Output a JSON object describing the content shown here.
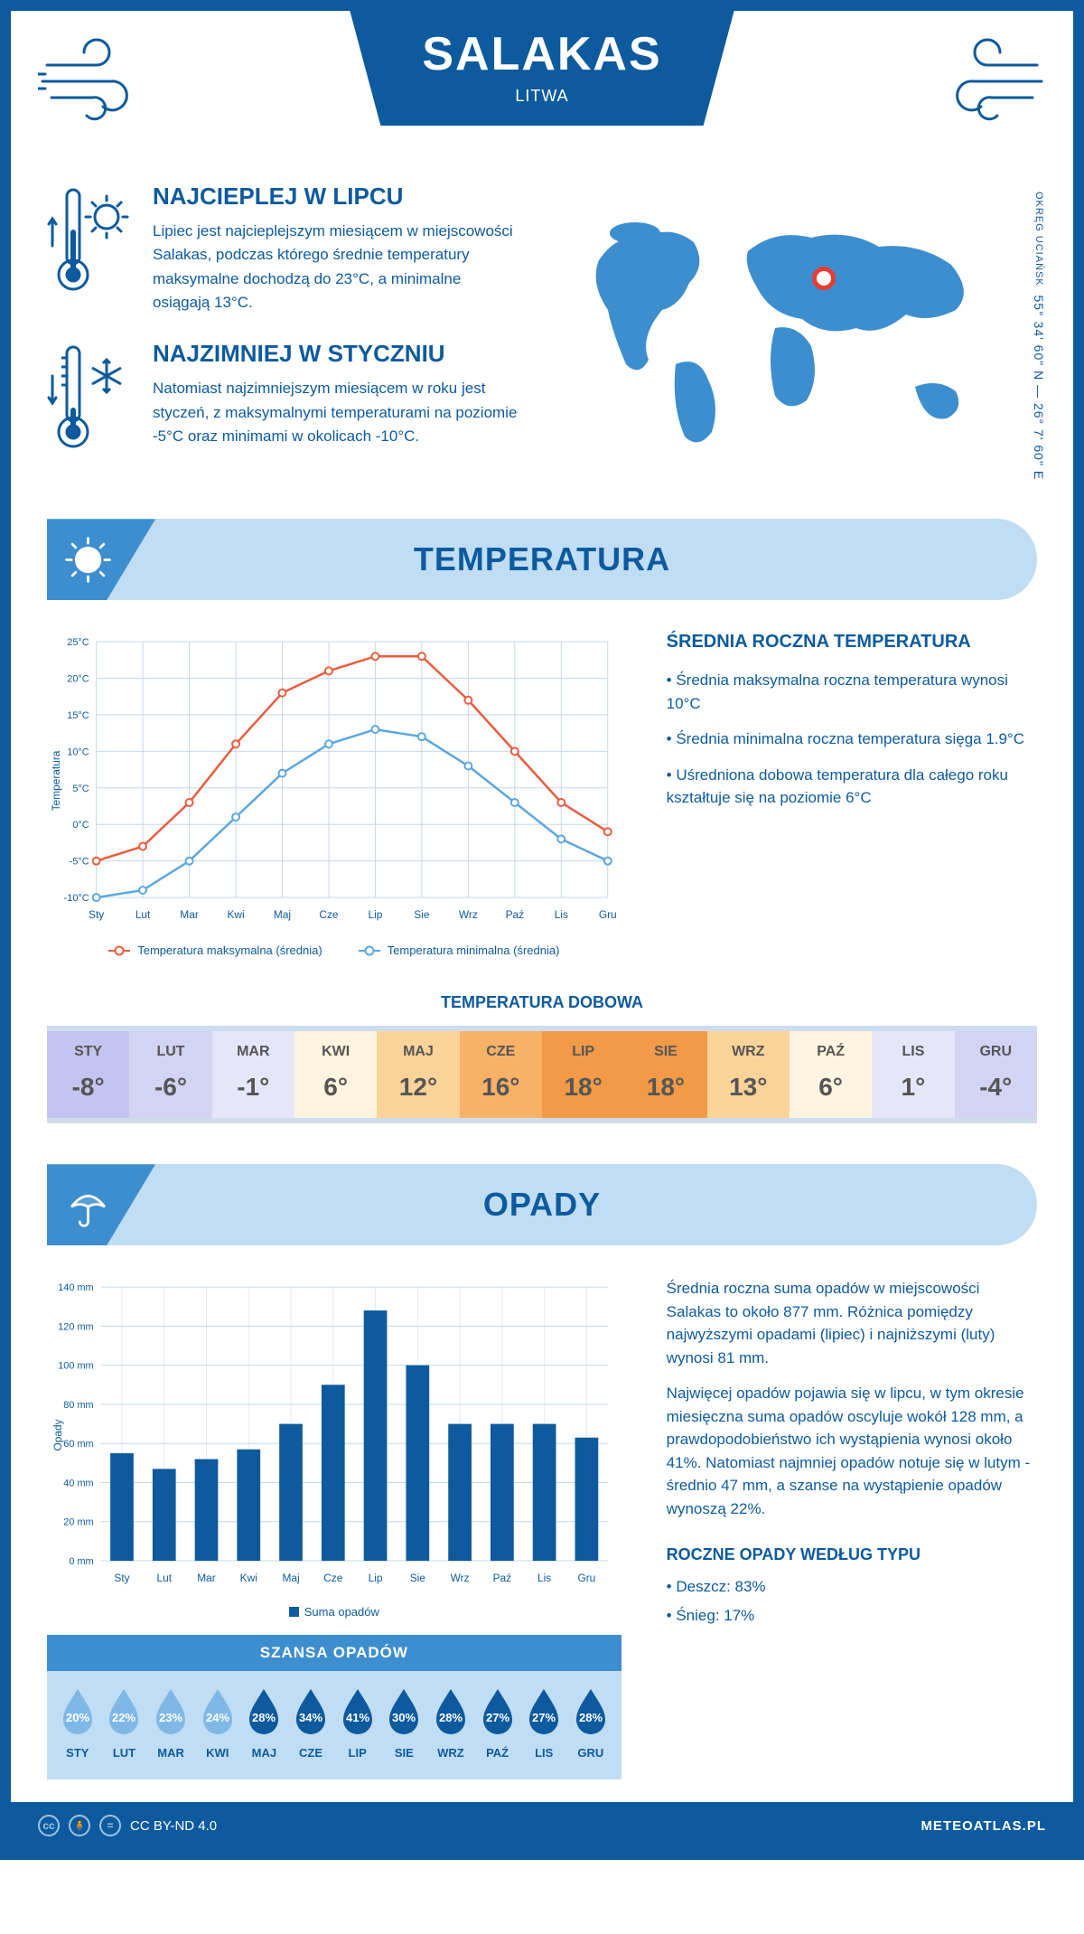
{
  "header": {
    "city": "SALAKAS",
    "country": "LITWA"
  },
  "coords": {
    "region": "OKRĘG UCIAŃSK",
    "lat": "55° 34' 60\" N — 26° 7' 60\" E"
  },
  "map_marker": {
    "left_pct": 53,
    "top_pct": 24
  },
  "facts": {
    "hot": {
      "title": "NAJCIEPLEJ W LIPCU",
      "text": "Lipiec jest najcieplejszym miesiącem w miejscowości Salakas, podczas którego średnie temperatury maksymalne dochodzą do 23°C, a minimalne osiągają 13°C."
    },
    "cold": {
      "title": "NAJZIMNIEJ W STYCZNIU",
      "text": "Natomiast najzimniejszym miesiącem w roku jest styczeń, z maksymalnymi temperaturami na poziomie -5°C oraz minimami w okolicach -10°C."
    }
  },
  "temp_section": {
    "heading": "TEMPERATURA",
    "info_title": "ŚREDNIA ROCZNA TEMPERATURA",
    "bullets": [
      "• Średnia maksymalna roczna temperatura wynosi 10°C",
      "• Średnia minimalna roczna temperatura sięga 1.9°C",
      "• Uśredniona dobowa temperatura dla całego roku kształtuje się na poziomie 6°C"
    ],
    "chart": {
      "months": [
        "Sty",
        "Lut",
        "Mar",
        "Kwi",
        "Maj",
        "Cze",
        "Lip",
        "Sie",
        "Wrz",
        "Paź",
        "Lis",
        "Gru"
      ],
      "max": [
        -5,
        -3,
        3,
        11,
        18,
        21,
        23,
        23,
        17,
        10,
        3,
        -1
      ],
      "min": [
        -10,
        -9,
        -5,
        1,
        7,
        11,
        13,
        12,
        8,
        3,
        -2,
        -5
      ],
      "ymin": -10,
      "ymax": 25,
      "ystep": 5,
      "max_color": "#e85d3d",
      "min_color": "#5ba7e0",
      "grid_color": "#c4d8eb",
      "axis_color": "#0d5a9e",
      "ylabel": "Temperatura",
      "leg_max": "Temperatura maksymalna (średnia)",
      "leg_min": "Temperatura minimalna (średnia)"
    },
    "daily_title": "TEMPERATURA DOBOWA",
    "daily": {
      "months": [
        "STY",
        "LUT",
        "MAR",
        "KWI",
        "MAJ",
        "CZE",
        "LIP",
        "SIE",
        "WRZ",
        "PAŹ",
        "LIS",
        "GRU"
      ],
      "values": [
        "-8°",
        "-6°",
        "-1°",
        "6°",
        "12°",
        "16°",
        "18°",
        "18°",
        "13°",
        "6°",
        "1°",
        "-4°"
      ],
      "colors": [
        "#c4c4f0",
        "#d3d3f4",
        "#e6e6fa",
        "#fff4e0",
        "#fbd399",
        "#f7b267",
        "#f29a47",
        "#f29a47",
        "#fbd399",
        "#fff4e0",
        "#e6e6fa",
        "#d3d3f4"
      ]
    }
  },
  "precip_section": {
    "heading": "OPADY",
    "text1": "Średnia roczna suma opadów w miejscowości Salakas to około 877 mm. Różnica pomiędzy najwyższymi opadami (lipiec) i najniższymi (luty) wynosi 81 mm.",
    "text2": "Najwięcej opadów pojawia się w lipcu, w tym okresie miesięczna suma opadów oscyluje wokół 128 mm, a prawdopodobieństwo ich wystąpienia wynosi około 41%. Natomiast najmniej opadów notuje się w lutym - średnio 47 mm, a szanse na wystąpienie opadów wynoszą 22%.",
    "chart": {
      "months": [
        "Sty",
        "Lut",
        "Mar",
        "Kwi",
        "Maj",
        "Cze",
        "Lip",
        "Sie",
        "Wrz",
        "Paź",
        "Lis",
        "Gru"
      ],
      "values": [
        55,
        47,
        52,
        57,
        70,
        90,
        128,
        100,
        70,
        70,
        70,
        63
      ],
      "ymax": 140,
      "ystep": 20,
      "bar_color": "#0d5a9e",
      "grid_color": "#c4d8eb",
      "ylabel": "Opady",
      "legend": "Suma opadów"
    },
    "drops": {
      "title": "SZANSA OPADÓW",
      "months": [
        "STY",
        "LUT",
        "MAR",
        "KWI",
        "MAJ",
        "CZE",
        "LIP",
        "SIE",
        "WRZ",
        "PAŹ",
        "LIS",
        "GRU"
      ],
      "pct": [
        "20%",
        "22%",
        "23%",
        "24%",
        "28%",
        "34%",
        "41%",
        "30%",
        "28%",
        "27%",
        "27%",
        "28%"
      ],
      "light_threshold": 4,
      "light_color": "#7fb8e6",
      "dark_color": "#0d5a9e"
    },
    "bytype": {
      "title": "ROCZNE OPADY WEDŁUG TYPU",
      "items": [
        "• Deszcz: 83%",
        "• Śnieg: 17%"
      ]
    }
  },
  "footer": {
    "license": "CC BY-ND 4.0",
    "site": "METEOATLAS.PL"
  },
  "colors": {
    "primary": "#0d5a9e",
    "accent": "#3d8ecf",
    "light": "#c0ddf4"
  }
}
